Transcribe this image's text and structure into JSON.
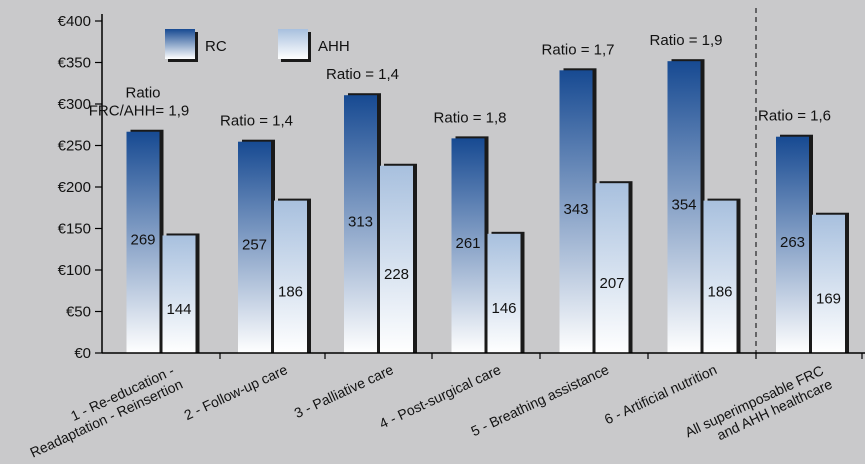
{
  "chart_data": {
    "type": "bar",
    "categories": [
      "1 - Re-education - Readaptation - Reinsertion",
      "2 - Follow-up care",
      "3 - Palliative care",
      "4 - Post-surgical care",
      "5 - Breathing assistance",
      "6 - Artificial nutrition",
      "All superimposable FRC and AHH healthcare"
    ],
    "category_lines": [
      [
        "1 - Re-education -",
        "Readaptation - Reinsertion"
      ],
      [
        "2 - Follow-up care"
      ],
      [
        "3 - Palliative care"
      ],
      [
        "4 - Post-surgical care"
      ],
      [
        "5 - Breathing assistance"
      ],
      [
        "6 - Artificial nutrition"
      ],
      [
        "All superimposable FRC",
        "and AHH healthcare"
      ]
    ],
    "series": [
      {
        "name": "RC",
        "values": [
          269,
          257,
          313,
          261,
          343,
          354,
          263
        ]
      },
      {
        "name": "AHH",
        "values": [
          144,
          186,
          228,
          146,
          207,
          186,
          169
        ]
      }
    ],
    "value_labels": {
      "RC": [
        "269",
        "257",
        "313",
        "261",
        "343",
        "354",
        "263"
      ],
      "AHH": [
        "144",
        "186",
        "228",
        "146",
        "207",
        "186",
        "169"
      ]
    },
    "ratio_labels": [
      [
        "Ratio",
        "FRC/AHH= 1,9"
      ],
      [
        "Ratio = 1,4"
      ],
      [
        "Ratio = 1,4"
      ],
      [
        "Ratio = 1,8"
      ],
      [
        "Ratio = 1,7"
      ],
      [
        "Ratio = 1,9"
      ],
      [
        "Ratio = 1,6"
      ]
    ],
    "y_ticks": [
      0,
      50,
      100,
      150,
      200,
      250,
      300,
      350,
      400
    ],
    "y_tick_labels": [
      "€0",
      "€50",
      "€100",
      "€150",
      "€200",
      "€250",
      "€300",
      "€350",
      "€400"
    ],
    "ylim": [
      0,
      400
    ],
    "title": "",
    "xlabel": "",
    "ylabel": "",
    "grid": false,
    "legend": "top",
    "separator_before_last": true,
    "colors": {
      "background": "#c9c9cb",
      "rc_top": "#174a92",
      "rc_bottom": "#ffffff",
      "ahh_top": "#a8c0de",
      "ahh_bottom": "#ffffff",
      "shadow": "#1a1a1a",
      "axis": "#000000"
    }
  }
}
